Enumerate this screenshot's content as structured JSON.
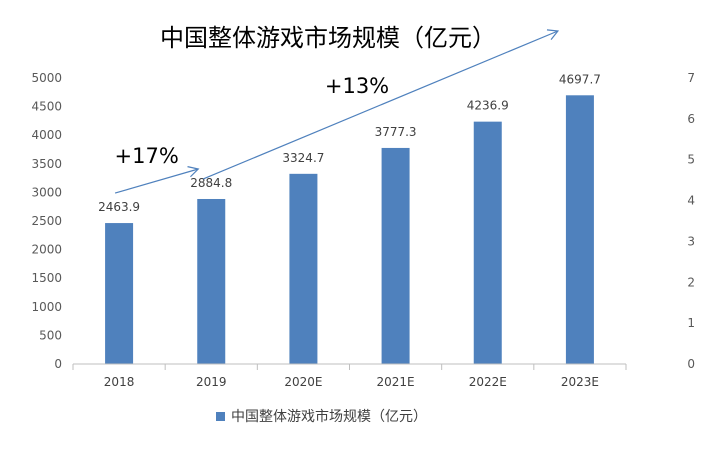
{
  "chart_data": {
    "type": "bar",
    "title": "中国整体游戏市场规模（亿元）",
    "categories": [
      "2018",
      "2019",
      "2020E",
      "2021E",
      "2022E",
      "2023E"
    ],
    "series": [
      {
        "name": "中国整体游戏市场规模（亿元）",
        "values": [
          2463.9,
          2884.8,
          3324.7,
          3777.3,
          4236.9,
          4697.7
        ],
        "color": "#4F81BD"
      }
    ],
    "data_labels": [
      "2463.9",
      "2884.8",
      "3324.7",
      "3777.3",
      "4236.9",
      "4697.7"
    ],
    "y_left": {
      "ylim": [
        0,
        5000
      ],
      "ticks": [
        "0",
        "500",
        "1000",
        "1500",
        "2000",
        "2500",
        "3000",
        "3500",
        "4000",
        "4500",
        "5000"
      ]
    },
    "y_right": {
      "ylim": [
        0,
        7
      ],
      "ticks": [
        "0",
        "1",
        "2",
        "3",
        "4",
        "5",
        "6",
        "7"
      ]
    },
    "annotations": [
      {
        "text": "+17%",
        "from_category": "2018",
        "to_category": "2019"
      },
      {
        "text": "+13%",
        "from_category": "2019",
        "to_category": "2023E"
      }
    ],
    "legend_position": "bottom",
    "grid": false,
    "arrow_color": "#4F81BD",
    "axis_color": "#BFBFBF"
  }
}
